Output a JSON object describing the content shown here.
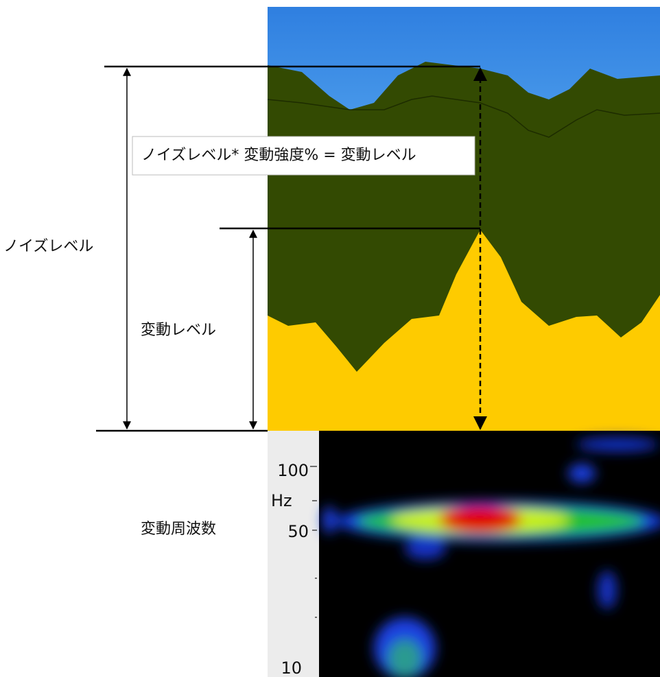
{
  "formula": "ノイズレベル* 変動強度% = 変動レベル",
  "labels": {
    "noise_level": "ノイズレベル",
    "variation_level": "変動レベル",
    "variation_frequency": "変動周波数"
  },
  "axis": {
    "ticks": [
      "100",
      "50",
      "10"
    ],
    "unit": "Hz"
  }
}
